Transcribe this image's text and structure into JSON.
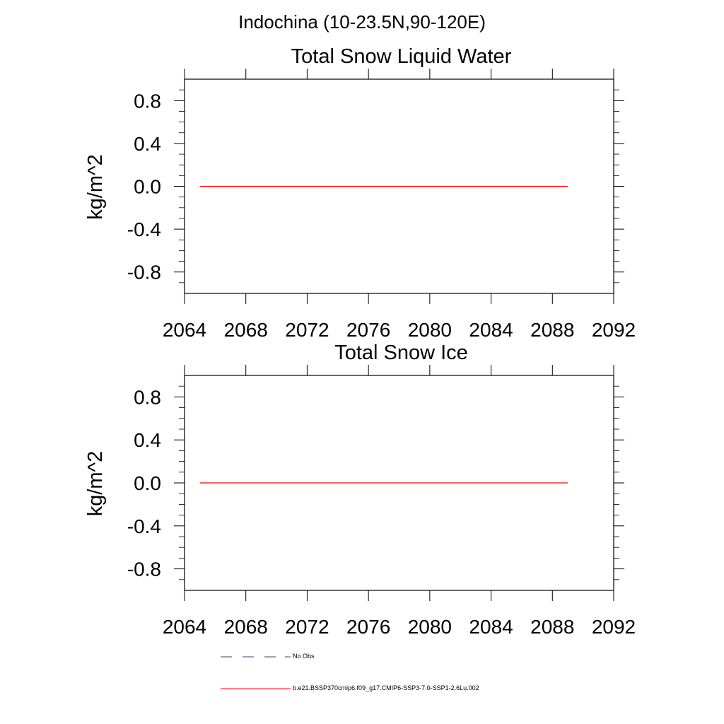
{
  "figure": {
    "supertitle": "Indochina (10-23.5N,90-120E)"
  },
  "chart_data": [
    {
      "type": "line",
      "title": "Total Snow Liquid Water",
      "xlabel": "",
      "ylabel": "kg/m^2",
      "xlim": [
        2064,
        2092
      ],
      "ylim": [
        -1.0,
        1.0
      ],
      "xticks": [
        2064,
        2068,
        2072,
        2076,
        2080,
        2084,
        2088,
        2092
      ],
      "xtick_labels": [
        "2064",
        "2068",
        "2072",
        "2076",
        "2080",
        "2084",
        "2088",
        "2092"
      ],
      "yticks": [
        0.8,
        0.4,
        0.0,
        -0.4,
        -0.8
      ],
      "ytick_labels": [
        "0.8",
        "0.4",
        "0.0",
        "-0.4",
        "-0.8"
      ],
      "grid": false,
      "series": [
        {
          "name": "b.e21.BSSP370cmip6.f09_g17.CMIP6-SSP3-7.0-SSP1-2.6Lu.002",
          "color": "#ff0000",
          "x": [
            2065,
            2089
          ],
          "y": [
            0.0,
            0.0
          ]
        }
      ]
    },
    {
      "type": "line",
      "title": "Total Snow Ice",
      "xlabel": "",
      "ylabel": "kg/m^2",
      "xlim": [
        2064,
        2092
      ],
      "ylim": [
        -1.0,
        1.0
      ],
      "xticks": [
        2064,
        2068,
        2072,
        2076,
        2080,
        2084,
        2088,
        2092
      ],
      "xtick_labels": [
        "2064",
        "2068",
        "2072",
        "2076",
        "2080",
        "2084",
        "2088",
        "2092"
      ],
      "yticks": [
        0.8,
        0.4,
        0.0,
        -0.4,
        -0.8
      ],
      "ytick_labels": [
        "0.8",
        "0.4",
        "0.0",
        "-0.4",
        "-0.8"
      ],
      "grid": false,
      "series": [
        {
          "name": "b.e21.BSSP370cmip6.f09_g17.CMIP6-SSP3-7.0-SSP1-2.6Lu.002",
          "color": "#ff0000",
          "x": [
            2065,
            2089
          ],
          "y": [
            0.0,
            0.0
          ]
        }
      ]
    }
  ],
  "legend": {
    "placement": "bottom",
    "entries": [
      {
        "label": "No Obs",
        "style": "dashed",
        "color": "#3c3c78"
      },
      {
        "label": "b.e21.BSSP370cmip6.f09_g17.CMIP6-SSP3-7.0-SSP1-2.6Lu.002",
        "style": "solid",
        "color": "#ff0000"
      }
    ]
  }
}
